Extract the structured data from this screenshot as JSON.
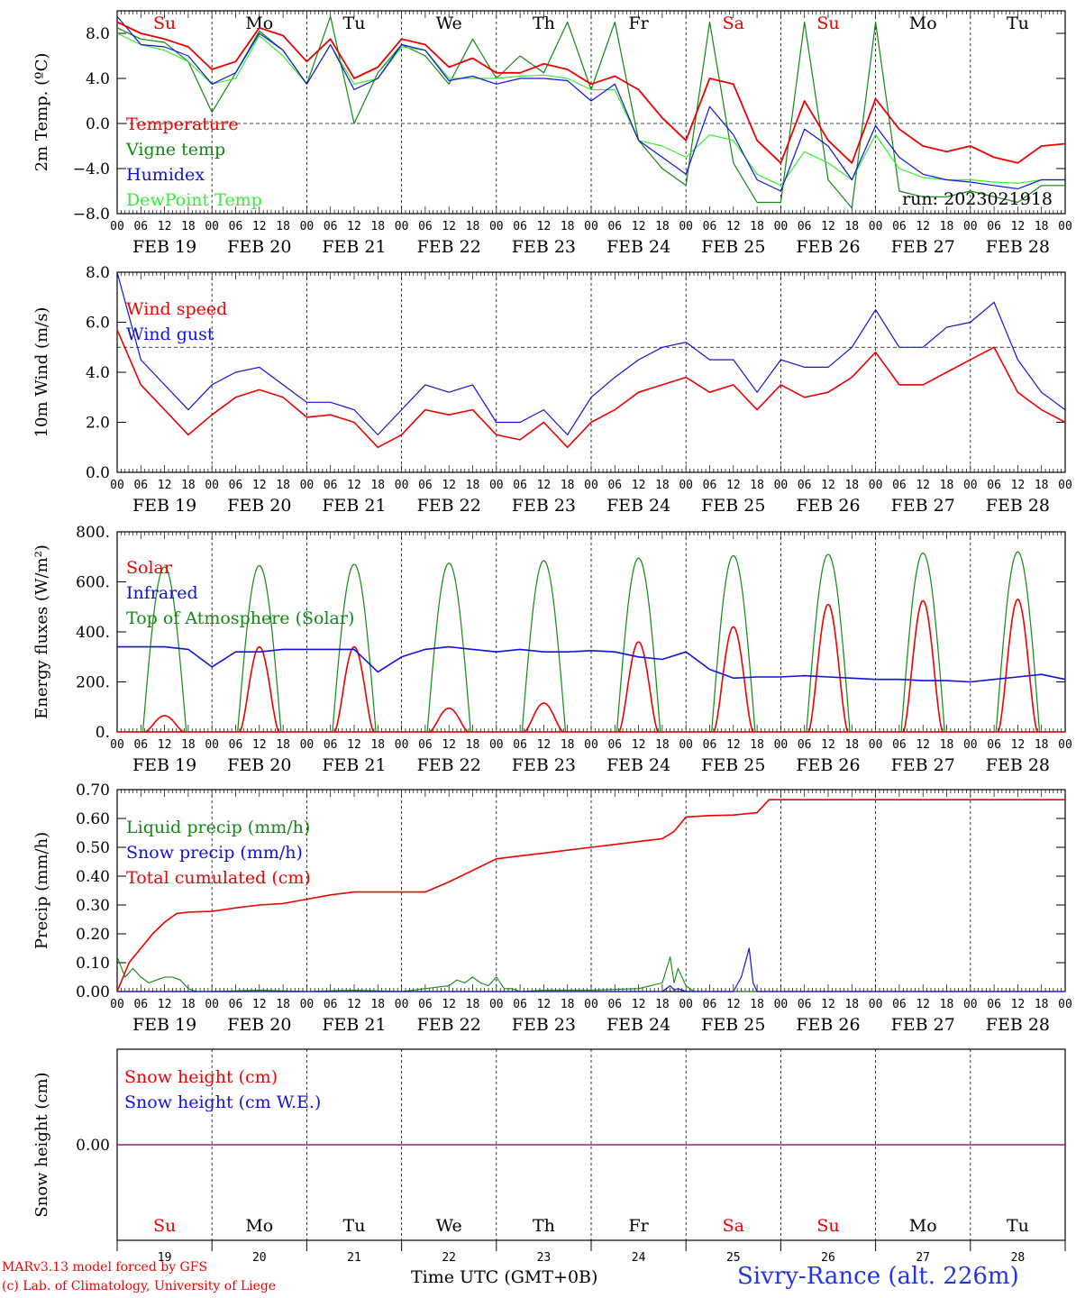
{
  "colors": {
    "red": "#ee0000",
    "green": "#118811",
    "blue": "#1111dd",
    "lightgreen": "#33ee33",
    "purple": "#882288"
  },
  "days": {
    "weekday_labels": [
      "Su",
      "Mo",
      "Tu",
      "We",
      "Th",
      "Fr",
      "Sa",
      "Su",
      "Mo",
      "Tu"
    ],
    "weekday_colors": [
      "red",
      "black",
      "black",
      "black",
      "black",
      "black",
      "red",
      "red",
      "black",
      "black"
    ],
    "date_labels": [
      "FEB 19",
      "FEB 20",
      "FEB 21",
      "FEB 22",
      "FEB 23",
      "FEB 24",
      "FEB 25",
      "FEB 26",
      "FEB 27",
      "FEB 28"
    ],
    "day_numbers": [
      "19",
      "20",
      "21",
      "22",
      "23",
      "24",
      "25",
      "26",
      "27",
      "28"
    ],
    "hour_labels": [
      "00",
      "06",
      "12",
      "18"
    ],
    "end_hour_label": "00"
  },
  "footer": {
    "credit_line1": "MARv3.13 model forced by GFS",
    "credit_line2": "(c) Lab. of Climatology, University of Liege",
    "xlabel": "Time UTC (GMT+0B)",
    "station": "Sivry-Rance (alt. 226m)"
  },
  "chart_data": [
    {
      "type": "line",
      "ylabel": "2m Temp. (ºC)",
      "ylim": [
        -8,
        10
      ],
      "yticks": [
        "8.0",
        "4.0",
        "0.0",
        "−4.0",
        "−8.0"
      ],
      "ytick_values": [
        8,
        4,
        0,
        -4,
        -8
      ],
      "ref_line": 0,
      "annotation": "run: 2023021918",
      "legend": [
        "Temperature",
        "Vigne temp",
        "Humidex",
        "DewPoint Temp"
      ],
      "legend_colors": [
        "red",
        "green",
        "blue",
        "lightgreen"
      ],
      "x": [
        0,
        6,
        12,
        18,
        24,
        30,
        36,
        42,
        48,
        54,
        60,
        66,
        72,
        78,
        84,
        90,
        96,
        102,
        108,
        114,
        120,
        126,
        132,
        138,
        144,
        150,
        156,
        162,
        168,
        174,
        180,
        186,
        192,
        198,
        204,
        210,
        216,
        222,
        228,
        234,
        240
      ],
      "series": [
        {
          "name": "Temperature",
          "color": "red",
          "values": [
            9.0,
            8.0,
            7.5,
            6.8,
            4.8,
            5.5,
            8.5,
            7.8,
            5.5,
            7.5,
            4.0,
            5.0,
            7.5,
            7.0,
            5.0,
            5.8,
            4.5,
            4.5,
            5.3,
            4.8,
            3.5,
            4.2,
            3.0,
            0.5,
            -1.5,
            4.0,
            3.5,
            -1.5,
            -3.5,
            2.0,
            -1.5,
            -3.5,
            2.2,
            -0.5,
            -2.0,
            -2.5,
            -2.0,
            -3.0,
            -3.5,
            -2.0,
            -1.8
          ]
        },
        {
          "name": "Vigne temp",
          "color": "green",
          "values": [
            8.5,
            7.5,
            7.2,
            5.5,
            1.0,
            4.5,
            8.2,
            6.5,
            3.5,
            9.5,
            0.0,
            4.5,
            7.0,
            6.0,
            3.5,
            7.5,
            4.0,
            6.0,
            4.5,
            9.0,
            3.0,
            9.0,
            -1.5,
            -4.0,
            -5.5,
            9.0,
            -3.5,
            -7.0,
            -7.0,
            9.0,
            -5.0,
            -7.5,
            9.0,
            -6.0,
            -6.5,
            -6.5,
            -6.0,
            -6.5,
            -7.0,
            -5.5,
            -5.5
          ]
        },
        {
          "name": "Humidex",
          "color": "blue",
          "values": [
            9.5,
            7.0,
            6.8,
            6.0,
            3.5,
            4.5,
            8.0,
            6.5,
            3.5,
            7.0,
            3.0,
            4.0,
            7.0,
            6.5,
            3.8,
            4.2,
            3.5,
            4.0,
            4.0,
            3.8,
            2.0,
            3.5,
            -1.5,
            -3.0,
            -4.5,
            1.5,
            -1.0,
            -5.0,
            -6.0,
            -0.5,
            -2.0,
            -5.0,
            -0.2,
            -3.0,
            -4.5,
            -5.0,
            -5.2,
            -5.5,
            -5.8,
            -5.0,
            -5.0
          ]
        },
        {
          "name": "DewPoint Temp",
          "color": "lightgreen",
          "values": [
            8.0,
            7.0,
            6.5,
            5.5,
            3.5,
            4.0,
            7.8,
            6.0,
            3.5,
            7.0,
            3.5,
            4.0,
            6.8,
            6.5,
            4.0,
            4.0,
            4.0,
            4.2,
            4.3,
            4.0,
            3.0,
            3.0,
            -1.5,
            -2.0,
            -3.0,
            -1.0,
            -1.5,
            -4.5,
            -5.5,
            -2.5,
            -3.5,
            -5.0,
            -1.0,
            -4.0,
            -4.8,
            -5.0,
            -5.0,
            -5.2,
            -5.3,
            -5.0,
            -5.0
          ]
        }
      ]
    },
    {
      "type": "line",
      "ylabel": "10m Wind (m/s)",
      "ylim": [
        0,
        8
      ],
      "yticks": [
        "8.0",
        "6.0",
        "4.0",
        "2.0",
        "0.0"
      ],
      "ytick_values": [
        8,
        6,
        4,
        2,
        0
      ],
      "ref_line": 5,
      "legend": [
        "Wind speed",
        "Wind gust"
      ],
      "legend_colors": [
        "red",
        "blue"
      ],
      "x": [
        0,
        6,
        12,
        18,
        24,
        30,
        36,
        42,
        48,
        54,
        60,
        66,
        72,
        78,
        84,
        90,
        96,
        102,
        108,
        114,
        120,
        126,
        132,
        138,
        144,
        150,
        156,
        162,
        168,
        174,
        180,
        186,
        192,
        198,
        204,
        210,
        216,
        222,
        228,
        234,
        240
      ],
      "series": [
        {
          "name": "Wind speed",
          "color": "red",
          "values": [
            5.7,
            3.5,
            2.5,
            1.5,
            2.3,
            3.0,
            3.3,
            3.0,
            2.2,
            2.3,
            2.0,
            1.0,
            1.5,
            2.5,
            2.3,
            2.5,
            1.5,
            1.3,
            2.0,
            1.0,
            2.0,
            2.5,
            3.2,
            3.5,
            3.8,
            3.2,
            3.5,
            2.5,
            3.5,
            3.0,
            3.2,
            3.8,
            4.8,
            3.5,
            3.5,
            4.0,
            4.5,
            5.0,
            3.2,
            2.5,
            2.0
          ]
        },
        {
          "name": "Wind gust",
          "color": "blue",
          "values": [
            8.0,
            4.5,
            3.5,
            2.5,
            3.5,
            4.0,
            4.2,
            3.5,
            2.8,
            2.8,
            2.5,
            1.5,
            2.5,
            3.5,
            3.2,
            3.5,
            2.0,
            2.0,
            2.5,
            1.5,
            3.0,
            3.8,
            4.5,
            5.0,
            5.2,
            4.5,
            4.5,
            3.2,
            4.5,
            4.2,
            4.2,
            5.0,
            6.5,
            5.0,
            5.0,
            5.8,
            6.0,
            6.8,
            4.5,
            3.2,
            2.5
          ]
        }
      ]
    },
    {
      "type": "line",
      "ylabel": "Energy fluxes (W/m²)",
      "ylim": [
        0,
        800
      ],
      "yticks": [
        "800.",
        "600.",
        "400.",
        "200.",
        "0."
      ],
      "ytick_values": [
        800,
        600,
        400,
        200,
        0
      ],
      "legend": [
        "Solar",
        "Infrared",
        "Top of Atmosphere (Solar)"
      ],
      "legend_colors": [
        "red",
        "blue",
        "green"
      ],
      "toa_peaks": [
        660,
        665,
        670,
        675,
        685,
        695,
        705,
        710,
        715,
        720
      ],
      "solar_peaks": [
        65,
        340,
        340,
        95,
        115,
        360,
        420,
        510,
        525,
        530
      ],
      "infrared": {
        "x": [
          0,
          12,
          18,
          24,
          30,
          36,
          42,
          48,
          54,
          60,
          66,
          72,
          78,
          84,
          90,
          96,
          102,
          108,
          114,
          120,
          126,
          132,
          138,
          144,
          150,
          156,
          162,
          168,
          174,
          180,
          186,
          192,
          198,
          204,
          210,
          216,
          222,
          228,
          234,
          240
        ],
        "values": [
          340,
          340,
          330,
          260,
          320,
          320,
          330,
          330,
          330,
          330,
          240,
          300,
          330,
          340,
          330,
          320,
          330,
          320,
          320,
          325,
          320,
          300,
          290,
          320,
          250,
          215,
          220,
          220,
          225,
          220,
          215,
          210,
          210,
          205,
          205,
          200,
          210,
          220,
          230,
          210
        ]
      }
    },
    {
      "type": "line",
      "ylabel": "Precip (mm/h)",
      "ylim": [
        0,
        0.7
      ],
      "yticks": [
        "0.70",
        "0.60",
        "0.50",
        "0.40",
        "0.30",
        "0.20",
        "0.10",
        "0.00"
      ],
      "ytick_values": [
        0.7,
        0.6,
        0.5,
        0.4,
        0.3,
        0.2,
        0.1,
        0.0
      ],
      "legend": [
        "Liquid precip (mm/h)",
        "Snow precip (mm/h)",
        "Total cumulated (cm)"
      ],
      "legend_colors": [
        "green",
        "blue",
        "red"
      ],
      "cumulated": {
        "x": [
          0,
          3,
          6,
          9,
          12,
          15,
          18,
          21,
          24,
          30,
          36,
          42,
          48,
          54,
          60,
          66,
          72,
          78,
          84,
          90,
          96,
          102,
          108,
          114,
          120,
          126,
          132,
          138,
          141,
          144,
          150,
          156,
          162,
          165,
          168,
          174,
          180,
          192,
          204,
          216,
          228,
          240
        ],
        "values": [
          0.0,
          0.1,
          0.15,
          0.2,
          0.24,
          0.27,
          0.275,
          0.277,
          0.278,
          0.29,
          0.3,
          0.305,
          0.32,
          0.335,
          0.345,
          0.345,
          0.345,
          0.345,
          0.38,
          0.42,
          0.46,
          0.47,
          0.48,
          0.49,
          0.5,
          0.51,
          0.52,
          0.53,
          0.555,
          0.605,
          0.61,
          0.612,
          0.62,
          0.665,
          0.665,
          0.665,
          0.665,
          0.665,
          0.665,
          0.665,
          0.665,
          0.665
        ]
      },
      "liquid": {
        "x": [
          0,
          2,
          4,
          6,
          8,
          10,
          12,
          14,
          16,
          18,
          20,
          24,
          36,
          48,
          60,
          72,
          84,
          86,
          88,
          90,
          92,
          94,
          96,
          98,
          100,
          102,
          108,
          120,
          132,
          138,
          140,
          141,
          142,
          144,
          146,
          150,
          160,
          170,
          180,
          200,
          220,
          240
        ],
        "values": [
          0.12,
          0.05,
          0.08,
          0.05,
          0.03,
          0.04,
          0.05,
          0.05,
          0.04,
          0.01,
          0.0,
          0.0,
          0.005,
          0.0,
          0.005,
          0.0,
          0.02,
          0.04,
          0.03,
          0.05,
          0.03,
          0.02,
          0.05,
          0.01,
          0.01,
          0.0,
          0.005,
          0.005,
          0.01,
          0.03,
          0.12,
          0.03,
          0.08,
          0.02,
          0.0,
          0.0,
          0.0,
          0.0,
          0.0,
          0.0,
          0.0,
          0.0
        ]
      },
      "snow": {
        "x": [
          0,
          138,
          140,
          141,
          142,
          144,
          146,
          156,
          158,
          159,
          160,
          161,
          162,
          170,
          240
        ],
        "values": [
          0,
          0,
          0.02,
          0.005,
          0.01,
          0.0,
          0,
          0,
          0.05,
          0.1,
          0.15,
          0.03,
          0,
          0,
          0
        ]
      }
    },
    {
      "type": "line",
      "ylabel": "Snow height (cm)",
      "yticks": [
        "0.00"
      ],
      "legend": [
        "Snow height (cm)",
        "Snow height (cm W.E.)"
      ],
      "legend_colors": [
        "red",
        "blue"
      ],
      "values_cm": 0,
      "values_we": 0
    }
  ]
}
